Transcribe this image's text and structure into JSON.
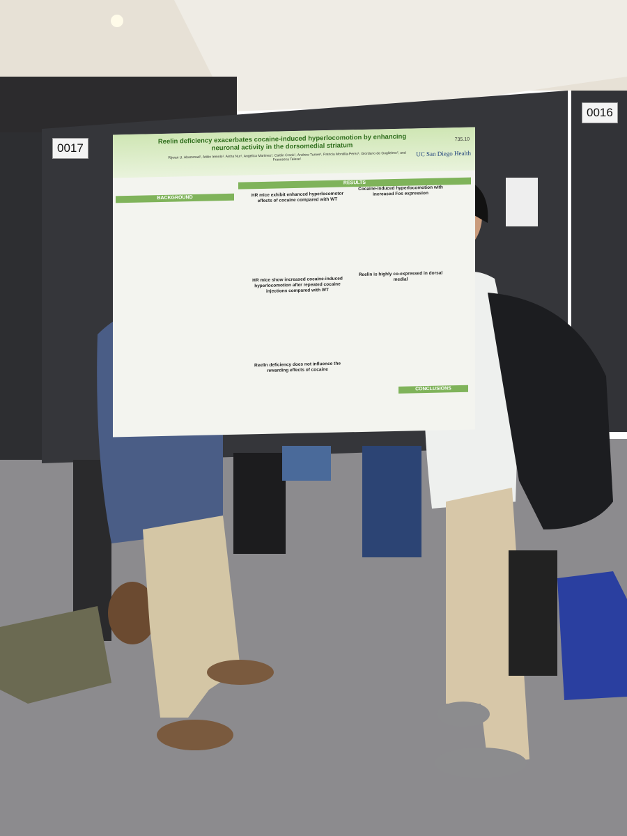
{
  "board_labels": [
    "0017",
    "0016"
  ],
  "poster": {
    "title": "Reelin deficiency exacerbates cocaine-induced hyperlocomotion by enhancing neuronal activity in the dorsomedial striatum",
    "number": "735.10",
    "logo": "UC San Diego Health",
    "authors": "Rijwan U. Ahammad¹, Attilio Iemolo¹, Aisha Nur¹, Angelica Martinez¹, Caitlin Crook¹, Andrew Turner¹, Patricia Montilla-Perez¹, Giordano de Guglielmo², and Francesca Telese¹",
    "sections": [
      "BACKGROUND",
      "RESULTS",
      "HR mice exhibit enhanced hyperlocomotor effects of cocaine compared with WT",
      "HR mice show increased cocaine-induced hyperlocomotion after repeated cocaine injections compared with WT",
      "Reelin deficiency does not influence the rewarding effects of cocaine",
      "Cocaine-induced hyperlocomotion with increased Fos expression",
      "Reelin is highly co-expressed in dorsal medial",
      "CONCLUSIONS"
    ]
  }
}
